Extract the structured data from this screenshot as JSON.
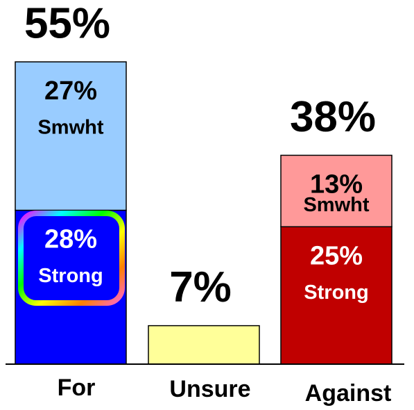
{
  "chart_data": {
    "type": "stacked-bar",
    "categories": [
      "For",
      "Unsure",
      "Against"
    ],
    "series": [
      {
        "name": "Strong",
        "colors": [
          "#0000ff",
          null,
          "#c00000"
        ],
        "values": [
          28,
          null,
          25
        ],
        "value_labels": [
          "28%",
          null,
          "25%"
        ]
      },
      {
        "name": "Smwht",
        "colors": [
          "#99ccff",
          null,
          "#ff9999"
        ],
        "values": [
          27,
          null,
          13
        ],
        "value_labels": [
          "27%",
          null,
          "13%"
        ]
      },
      {
        "colors": [
          null,
          "#ffff99",
          null
        ],
        "values": [
          null,
          7,
          null
        ]
      }
    ],
    "totals": [
      55,
      7,
      38
    ],
    "total_labels": [
      "55%",
      "7%",
      "38%"
    ],
    "ylim": [
      0,
      55
    ]
  }
}
